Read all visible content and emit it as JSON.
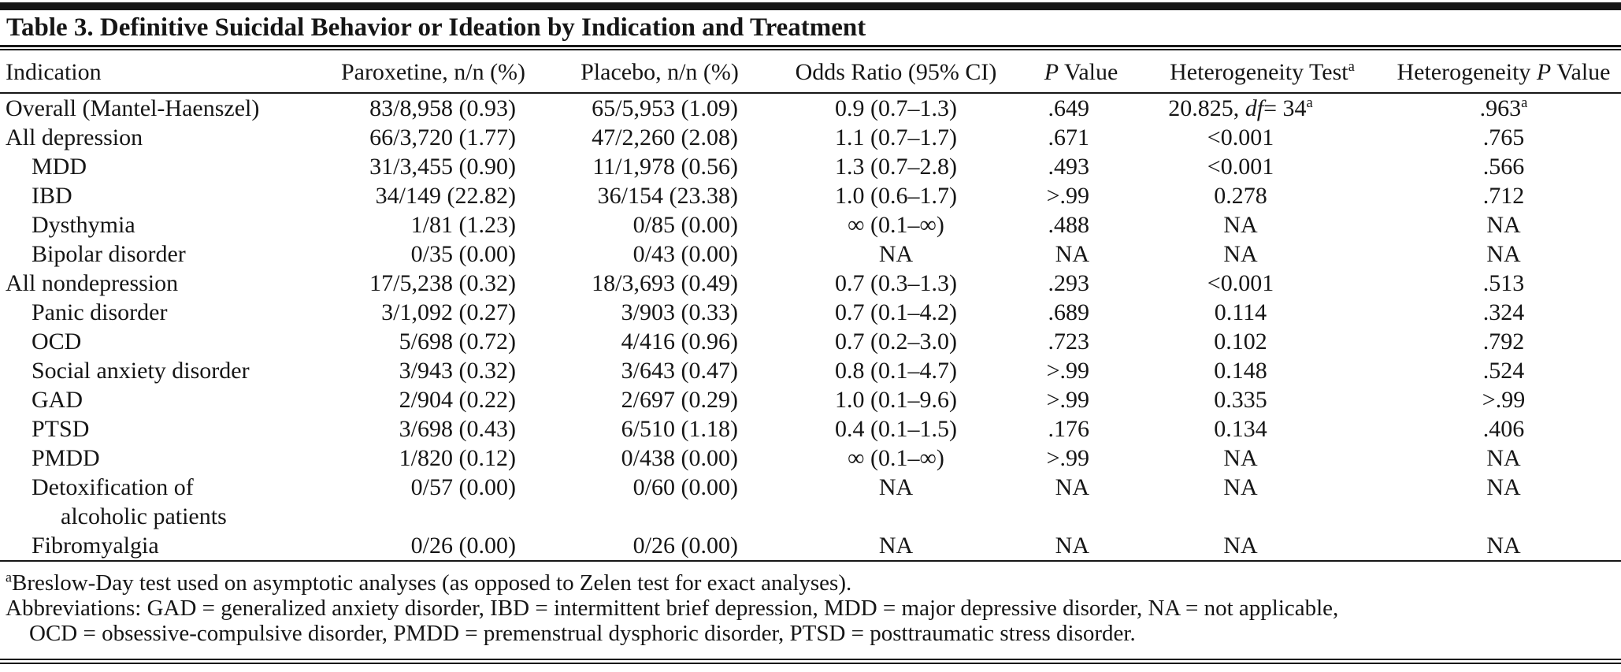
{
  "title": "Table 3. Definitive Suicidal Behavior or Ideation by Indication and Treatment",
  "table": {
    "columns": [
      {
        "segs": [
          {
            "t": "Indication"
          }
        ]
      },
      {
        "segs": [
          {
            "t": "Paroxetine, n/n (%)"
          }
        ]
      },
      {
        "segs": [
          {
            "t": "Placebo, n/n (%)"
          }
        ]
      },
      {
        "segs": [
          {
            "t": "Odds Ratio (95% CI)"
          }
        ]
      },
      {
        "segs": [
          {
            "i": "P"
          },
          {
            "t": " Value"
          }
        ]
      },
      {
        "segs": [
          {
            "t": "Heterogeneity Test"
          },
          {
            "sup": "a"
          }
        ]
      },
      {
        "segs": [
          {
            "t": "Heterogeneity "
          },
          {
            "i": "P"
          },
          {
            "t": " Value"
          }
        ]
      }
    ],
    "rows": [
      {
        "indication": "Overall (Mantel-Haenszel)",
        "indent": 0,
        "paroxetine": "83/8,958 (0.93)",
        "placebo": "65/5,953 (1.09)",
        "odds_ratio": "0.9 (0.7–1.3)",
        "p_value": ".649",
        "het_test": {
          "segs": [
            {
              "t": "20.825, "
            },
            {
              "i": "df"
            },
            {
              "t": "= 34"
            },
            {
              "sup": "a"
            }
          ]
        },
        "het_p": {
          "segs": [
            {
              "t": ".963"
            },
            {
              "sup": "a"
            }
          ]
        }
      },
      {
        "indication": "All depression",
        "indent": 0,
        "paroxetine": "66/3,720 (1.77)",
        "placebo": "47/2,260 (2.08)",
        "odds_ratio": "1.1 (0.7–1.7)",
        "p_value": ".671",
        "het_test": "<0.001",
        "het_p": ".765"
      },
      {
        "indication": "MDD",
        "indent": 1,
        "paroxetine": "31/3,455 (0.90)",
        "placebo": "11/1,978 (0.56)",
        "odds_ratio": "1.3 (0.7–2.8)",
        "p_value": ".493",
        "het_test": "<0.001",
        "het_p": ".566"
      },
      {
        "indication": "IBD",
        "indent": 1,
        "paroxetine": "34/149 (22.82)",
        "placebo": "36/154 (23.38)",
        "odds_ratio": "1.0 (0.6–1.7)",
        "p_value": ">.99",
        "het_test": "0.278",
        "het_p": ".712"
      },
      {
        "indication": "Dysthymia",
        "indent": 1,
        "paroxetine": "1/81 (1.23)",
        "placebo": "0/85 (0.00)",
        "odds_ratio": "∞ (0.1–∞)",
        "p_value": ".488",
        "het_test": "NA",
        "het_p": "NA"
      },
      {
        "indication": "Bipolar disorder",
        "indent": 1,
        "paroxetine": "0/35 (0.00)",
        "placebo": "0/43 (0.00)",
        "odds_ratio": "NA",
        "p_value": "NA",
        "het_test": "NA",
        "het_p": "NA"
      },
      {
        "indication": "All nondepression",
        "indent": 0,
        "paroxetine": "17/5,238 (0.32)",
        "placebo": "18/3,693 (0.49)",
        "odds_ratio": "0.7 (0.3–1.3)",
        "p_value": ".293",
        "het_test": "<0.001",
        "het_p": ".513"
      },
      {
        "indication": "Panic disorder",
        "indent": 1,
        "paroxetine": "3/1,092 (0.27)",
        "placebo": "3/903 (0.33)",
        "odds_ratio": "0.7 (0.1–4.2)",
        "p_value": ".689",
        "het_test": "0.114",
        "het_p": ".324"
      },
      {
        "indication": "OCD",
        "indent": 1,
        "paroxetine": "5/698 (0.72)",
        "placebo": "4/416 (0.96)",
        "odds_ratio": "0.7 (0.2–3.0)",
        "p_value": ".723",
        "het_test": "0.102",
        "het_p": ".792"
      },
      {
        "indication": "Social anxiety disorder",
        "indent": 1,
        "paroxetine": "3/943 (0.32)",
        "placebo": "3/643 (0.47)",
        "odds_ratio": "0.8 (0.1–4.7)",
        "p_value": ">.99",
        "het_test": "0.148",
        "het_p": ".524"
      },
      {
        "indication": "GAD",
        "indent": 1,
        "paroxetine": "2/904 (0.22)",
        "placebo": "2/697 (0.29)",
        "odds_ratio": "1.0 (0.1–9.6)",
        "p_value": ">.99",
        "het_test": "0.335",
        "het_p": ">.99"
      },
      {
        "indication": "PTSD",
        "indent": 1,
        "paroxetine": "3/698 (0.43)",
        "placebo": "6/510 (1.18)",
        "odds_ratio": "0.4 (0.1–1.5)",
        "p_value": ".176",
        "het_test": "0.134",
        "het_p": ".406"
      },
      {
        "indication": "PMDD",
        "indent": 1,
        "paroxetine": "1/820 (0.12)",
        "placebo": "0/438 (0.00)",
        "odds_ratio": "∞ (0.1–∞)",
        "p_value": ">.99",
        "het_test": "NA",
        "het_p": "NA"
      },
      {
        "indication": "Detoxification of",
        "indication_line2": "alcoholic patients",
        "indent": 1,
        "paroxetine": "0/57 (0.00)",
        "placebo": "0/60 (0.00)",
        "odds_ratio": "NA",
        "p_value": "NA",
        "het_test": "NA",
        "het_p": "NA"
      },
      {
        "indication": "Fibromyalgia",
        "indent": 1,
        "paroxetine": "0/26 (0.00)",
        "placebo": "0/26 (0.00)",
        "odds_ratio": "NA",
        "p_value": "NA",
        "het_test": "NA",
        "het_p": "NA"
      }
    ]
  },
  "footnotes": [
    {
      "segs": [
        {
          "sup": "a"
        },
        {
          "t": "Breslow-Day test used on asymptotic analyses (as opposed to Zelen test for exact analyses)."
        }
      ]
    },
    {
      "segs": [
        {
          "t": "Abbreviations: GAD = generalized anxiety disorder, IBD = intermittent brief depression, MDD = major depressive disorder, NA = not applicable,"
        }
      ]
    },
    {
      "segs": [
        {
          "t": "OCD = obsessive-compulsive disorder, PMDD = premenstrual dysphoric disorder, PTSD = posttraumatic stress disorder."
        }
      ]
    }
  ]
}
